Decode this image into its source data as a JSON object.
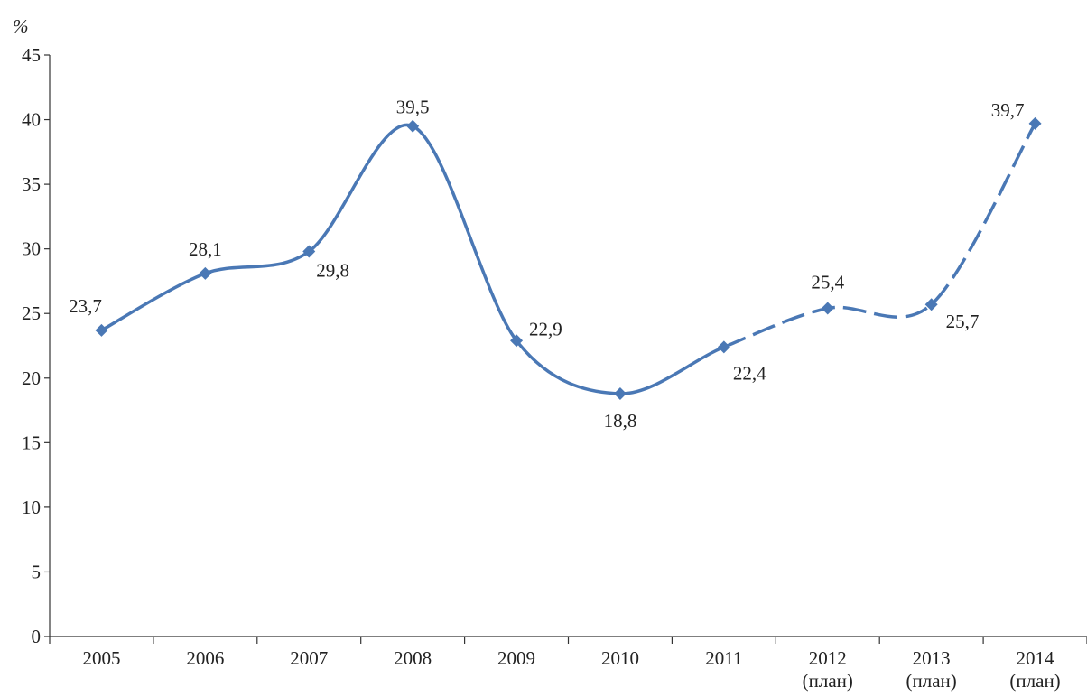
{
  "chart_data": {
    "type": "line",
    "title": "",
    "xlabel": "",
    "ylabel": "%",
    "ylim": [
      0,
      45
    ],
    "yticks": [
      0,
      5,
      10,
      15,
      20,
      25,
      30,
      35,
      40,
      45
    ],
    "grid": false,
    "categories": [
      [
        "2005"
      ],
      [
        "2006"
      ],
      [
        "2007"
      ],
      [
        "2008"
      ],
      [
        "2009"
      ],
      [
        "2010"
      ],
      [
        "2011"
      ],
      [
        "2012",
        "(план)"
      ],
      [
        "2013",
        "(план)"
      ],
      [
        "2014",
        "(план)"
      ]
    ],
    "series": [
      {
        "values": [
          23.7,
          28.1,
          29.8,
          39.5,
          22.9,
          18.8,
          22.4,
          25.4,
          25.7,
          39.7
        ],
        "labels": [
          "23,7",
          "28,1",
          "29,8",
          "39,5",
          "22,9",
          "18,8",
          "22,4",
          "25,4",
          "25,7",
          "39,7"
        ],
        "actual_until_index": 6,
        "planned_style": "dashed"
      }
    ],
    "color": "#4a78b5"
  }
}
